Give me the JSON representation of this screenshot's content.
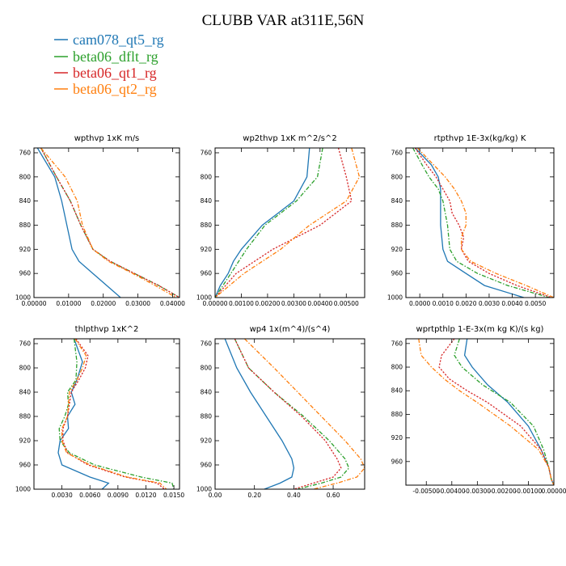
{
  "figure": {
    "title": "CLUBB VAR at311E,56N"
  },
  "colors": {
    "cam078_qt5_rg": "#1f77b4",
    "beta06_dflt_rg": "#2ca02c",
    "beta06_qt1_rg": "#d62728",
    "beta06_qt2_rg": "#ff7f0e"
  },
  "legend": {
    "entries": [
      {
        "label": "cam078_qt5_rg",
        "color": "#1f77b4"
      },
      {
        "label": "beta06_dflt_rg",
        "color": "#2ca02c"
      },
      {
        "label": "beta06_qt1_rg",
        "color": "#d62728"
      },
      {
        "label": "beta06_qt2_rg",
        "color": "#ff7f0e"
      }
    ],
    "placement": "top-left"
  },
  "chart_data": [
    {
      "type": "line",
      "title": "wpthvp  1xK m/s",
      "xlim": [
        0,
        0.042
      ],
      "ylim": [
        1000,
        752
      ],
      "y_inverted": true,
      "xticks": [
        0.0,
        0.01,
        0.02,
        0.03,
        0.04
      ],
      "xtick_labels": [
        "0.00000",
        "0.01000",
        "0.02000",
        "0.03000",
        "0.04000"
      ],
      "yticks": [
        760,
        800,
        840,
        880,
        920,
        960,
        1000
      ],
      "ytick_labels": [
        "760",
        "800",
        "840",
        "880",
        "920",
        "960",
        "1000"
      ],
      "series": [
        {
          "name": "cam078_qt5_rg",
          "y": [
            752,
            800,
            840,
            880,
            920,
            940,
            960,
            980,
            1000
          ],
          "x": [
            0.001,
            0.006,
            0.008,
            0.0095,
            0.011,
            0.013,
            0.017,
            0.021,
            0.025
          ]
        },
        {
          "name": "beta06_dflt_rg",
          "y": [
            752,
            800,
            840,
            880,
            920,
            940,
            960,
            980,
            1000
          ],
          "x": [
            0.002,
            0.0065,
            0.0105,
            0.0135,
            0.017,
            0.022,
            0.029,
            0.036,
            0.042
          ]
        },
        {
          "name": "beta06_qt1_rg",
          "y": [
            752,
            800,
            840,
            880,
            920,
            940,
            960,
            980,
            1000
          ],
          "x": [
            0.002,
            0.0065,
            0.0105,
            0.0135,
            0.017,
            0.022,
            0.029,
            0.036,
            0.042
          ]
        },
        {
          "name": "beta06_qt2_rg",
          "y": [
            752,
            800,
            840,
            880,
            920,
            940,
            960,
            980,
            1000
          ],
          "x": [
            0.002,
            0.009,
            0.0125,
            0.014,
            0.017,
            0.0215,
            0.0285,
            0.035,
            0.041
          ]
        }
      ]
    },
    {
      "type": "line",
      "title": "wp2thvp  1xK m^2/s^2",
      "xlim": [
        0,
        0.0057
      ],
      "ylim": [
        1000,
        752
      ],
      "y_inverted": true,
      "xticks": [
        0.0,
        0.001,
        0.002,
        0.003,
        0.004,
        0.005
      ],
      "xtick_labels": [
        "0.00000",
        "0.00100",
        "0.00200",
        "0.00300",
        "0.00400",
        "0.00500"
      ],
      "yticks": [
        760,
        800,
        840,
        880,
        920,
        960,
        1000
      ],
      "ytick_labels": [
        "760",
        "800",
        "840",
        "880",
        "920",
        "960",
        "1000"
      ],
      "series": [
        {
          "name": "cam078_qt5_rg",
          "y": [
            752,
            800,
            840,
            860,
            880,
            900,
            920,
            940,
            960,
            980,
            1000
          ],
          "x": [
            0.0036,
            0.0035,
            0.003,
            0.0024,
            0.0018,
            0.0014,
            0.001,
            0.0007,
            0.0005,
            0.0002,
            0.0
          ]
        },
        {
          "name": "beta06_dflt_rg",
          "y": [
            752,
            800,
            840,
            880,
            920,
            960,
            1000
          ],
          "x": [
            0.0041,
            0.0039,
            0.0031,
            0.0019,
            0.0012,
            0.0006,
            0.0
          ]
        },
        {
          "name": "beta06_qt1_rg",
          "y": [
            752,
            800,
            840,
            880,
            920,
            960,
            1000
          ],
          "x": [
            0.0047,
            0.005,
            0.0052,
            0.004,
            0.0022,
            0.0008,
            0.0
          ]
        },
        {
          "name": "beta06_qt2_rg",
          "y": [
            752,
            800,
            840,
            880,
            920,
            960,
            1000
          ],
          "x": [
            0.0052,
            0.0055,
            0.005,
            0.0036,
            0.0025,
            0.0011,
            0.0
          ]
        }
      ]
    },
    {
      "type": "line",
      "title": "rtpthvp  1E-3x(kg/kg) K",
      "xlim": [
        -0.0006,
        0.0058
      ],
      "ylim": [
        1000,
        752
      ],
      "y_inverted": true,
      "xticks": [
        0.0,
        0.001,
        0.002,
        0.003,
        0.004,
        0.005
      ],
      "xtick_labels": [
        "0.0000",
        "0.0010",
        "0.0020",
        "0.0030",
        "0.0040",
        "0.0050"
      ],
      "yticks": [
        760,
        800,
        840,
        880,
        920,
        960,
        1000
      ],
      "ytick_labels": [
        "760",
        "800",
        "840",
        "880",
        "920",
        "960",
        "1000"
      ],
      "series": [
        {
          "name": "cam078_qt5_rg",
          "y": [
            752,
            780,
            800,
            820,
            840,
            880,
            920,
            940,
            960,
            980,
            1000
          ],
          "x": [
            -0.0002,
            0.0005,
            0.0008,
            0.0009,
            0.0009,
            0.0009,
            0.001,
            0.0012,
            0.002,
            0.0028,
            0.0045
          ]
        },
        {
          "name": "beta06_dflt_rg",
          "y": [
            752,
            780,
            800,
            820,
            840,
            880,
            920,
            940,
            960,
            980,
            1000
          ],
          "x": [
            -0.0003,
            0.0001,
            0.0004,
            0.0008,
            0.001,
            0.0012,
            0.0013,
            0.0016,
            0.0025,
            0.0038,
            0.0056
          ]
        },
        {
          "name": "beta06_qt1_rg",
          "y": [
            752,
            780,
            800,
            820,
            840,
            860,
            880,
            900,
            920,
            940,
            960,
            980,
            1000
          ],
          "x": [
            -0.0002,
            0.0003,
            0.0007,
            0.001,
            0.0013,
            0.0014,
            0.0017,
            0.0019,
            0.0018,
            0.0021,
            0.003,
            0.0042,
            0.0057
          ]
        },
        {
          "name": "beta06_qt2_rg",
          "y": [
            752,
            780,
            800,
            820,
            840,
            860,
            880,
            900,
            920,
            940,
            960,
            980,
            1000
          ],
          "x": [
            -0.0001,
            0.0006,
            0.0011,
            0.0015,
            0.0018,
            0.002,
            0.002,
            0.0018,
            0.0018,
            0.0022,
            0.0033,
            0.0046,
            0.0058
          ]
        }
      ]
    },
    {
      "type": "line",
      "title": "thlpthvp  1xK^2",
      "xlim": [
        0.0,
        0.0156
      ],
      "ylim": [
        1000,
        752
      ],
      "y_inverted": true,
      "xticks": [
        0.003,
        0.006,
        0.009,
        0.012,
        0.015
      ],
      "xtick_labels": [
        "0.0030",
        "0.0060",
        "0.0090",
        "0.0120",
        "0.0150"
      ],
      "yticks": [
        760,
        800,
        840,
        880,
        920,
        960,
        1000
      ],
      "ytick_labels": [
        "760",
        "800",
        "840",
        "880",
        "920",
        "960",
        "1000"
      ],
      "series": [
        {
          "name": "cam078_qt5_rg",
          "y": [
            752,
            790,
            820,
            840,
            860,
            880,
            900,
            920,
            940,
            960,
            980,
            990,
            1000
          ],
          "x": [
            0.0043,
            0.0052,
            0.0046,
            0.004,
            0.0044,
            0.0036,
            0.0037,
            0.0028,
            0.0026,
            0.003,
            0.006,
            0.008,
            0.0073
          ]
        },
        {
          "name": "beta06_dflt_rg",
          "y": [
            752,
            790,
            820,
            840,
            860,
            880,
            900,
            920,
            940,
            960,
            980,
            990,
            1000
          ],
          "x": [
            0.0043,
            0.0046,
            0.0045,
            0.0036,
            0.0037,
            0.0033,
            0.0027,
            0.0028,
            0.0038,
            0.0065,
            0.0115,
            0.0148,
            0.015
          ]
        },
        {
          "name": "beta06_qt1_rg",
          "y": [
            752,
            780,
            800,
            820,
            840,
            860,
            880,
            900,
            920,
            940,
            960,
            980,
            990,
            1000
          ],
          "x": [
            0.0045,
            0.0058,
            0.0055,
            0.0048,
            0.004,
            0.0038,
            0.0036,
            0.0031,
            0.0031,
            0.0036,
            0.0058,
            0.0098,
            0.0132,
            0.014
          ]
        },
        {
          "name": "beta06_qt2_rg",
          "y": [
            752,
            780,
            800,
            820,
            840,
            860,
            880,
            900,
            920,
            940,
            960,
            980,
            990,
            1000
          ],
          "x": [
            0.0044,
            0.0056,
            0.0052,
            0.0046,
            0.0038,
            0.0037,
            0.0036,
            0.003,
            0.003,
            0.0035,
            0.006,
            0.01,
            0.0135,
            0.0142
          ]
        }
      ]
    },
    {
      "type": "line",
      "title": "wp4  1x(m^4)/(s^4)",
      "xlim": [
        0.0,
        0.76
      ],
      "ylim": [
        1000,
        752
      ],
      "y_inverted": true,
      "xticks": [
        0.0,
        0.2,
        0.4,
        0.6
      ],
      "xtick_labels": [
        "0.00",
        "0.20",
        "0.40",
        "0.60"
      ],
      "yticks": [
        760,
        800,
        840,
        880,
        920,
        960,
        1000
      ],
      "ytick_labels": [
        "760",
        "800",
        "840",
        "880",
        "920",
        "960",
        "1000"
      ],
      "series": [
        {
          "name": "cam078_qt5_rg",
          "y": [
            752,
            800,
            840,
            880,
            920,
            950,
            965,
            980,
            990,
            1000
          ],
          "x": [
            0.05,
            0.11,
            0.18,
            0.26,
            0.34,
            0.39,
            0.4,
            0.39,
            0.33,
            0.25
          ]
        },
        {
          "name": "beta06_dflt_rg",
          "y": [
            752,
            800,
            840,
            880,
            920,
            950,
            965,
            980,
            990,
            1000
          ],
          "x": [
            0.1,
            0.17,
            0.3,
            0.45,
            0.58,
            0.66,
            0.68,
            0.64,
            0.54,
            0.42
          ]
        },
        {
          "name": "beta06_qt1_rg",
          "y": [
            752,
            800,
            840,
            880,
            920,
            950,
            965,
            980,
            990,
            1000
          ],
          "x": [
            0.1,
            0.17,
            0.3,
            0.44,
            0.56,
            0.62,
            0.64,
            0.6,
            0.5,
            0.4
          ]
        },
        {
          "name": "beta06_qt2_rg",
          "y": [
            752,
            800,
            840,
            880,
            920,
            950,
            965,
            980,
            990,
            1000
          ],
          "x": [
            0.15,
            0.3,
            0.42,
            0.54,
            0.66,
            0.74,
            0.76,
            0.72,
            0.62,
            0.5
          ]
        }
      ]
    },
    {
      "type": "line",
      "title": "wprtpthlp  1-E-3x(m kg K)/(s kg)",
      "xlim": [
        -0.0058,
        0.0
      ],
      "ylim": [
        1000,
        752
      ],
      "y_inverted": true,
      "xticks": [
        -0.005,
        -0.004,
        -0.003,
        -0.002,
        -0.001,
        0.0
      ],
      "xtick_labels": [
        "-0.00500",
        "-0.00400",
        "-0.00300",
        "-0.00200",
        "-0.00100",
        "0.00000"
      ],
      "yticks": [
        760,
        800,
        840,
        880,
        920,
        960
      ],
      "ytick_labels": [
        "760",
        "800",
        "840",
        "880",
        "920",
        "960"
      ],
      "series": [
        {
          "name": "cam078_qt5_rg",
          "y": [
            752,
            780,
            800,
            830,
            860,
            900,
            940,
            970,
            990,
            1000
          ],
          "x": [
            -0.0034,
            -0.0035,
            -0.0032,
            -0.0026,
            -0.0018,
            -0.001,
            -0.0005,
            -0.0002,
            -0.0001,
            0.0
          ]
        },
        {
          "name": "beta06_dflt_rg",
          "y": [
            752,
            780,
            800,
            830,
            860,
            900,
            940,
            970,
            990,
            1000
          ],
          "x": [
            -0.0037,
            -0.0039,
            -0.0036,
            -0.0028,
            -0.0017,
            -0.0008,
            -0.0004,
            -0.0002,
            -0.0001,
            0.0
          ]
        },
        {
          "name": "beta06_qt1_rg",
          "y": [
            752,
            780,
            800,
            820,
            840,
            860,
            900,
            940,
            970,
            990,
            1000
          ],
          "x": [
            -0.0039,
            -0.0044,
            -0.0045,
            -0.0041,
            -0.0034,
            -0.0026,
            -0.0013,
            -0.0005,
            -0.0002,
            -0.0001,
            0.0
          ]
        },
        {
          "name": "beta06_qt2_rg",
          "y": [
            752,
            780,
            800,
            820,
            840,
            860,
            900,
            940,
            970,
            990,
            1000
          ],
          "x": [
            -0.0053,
            -0.0052,
            -0.0048,
            -0.0043,
            -0.0037,
            -0.003,
            -0.0017,
            -0.0006,
            -0.0002,
            -0.0001,
            0.0
          ]
        }
      ]
    }
  ]
}
